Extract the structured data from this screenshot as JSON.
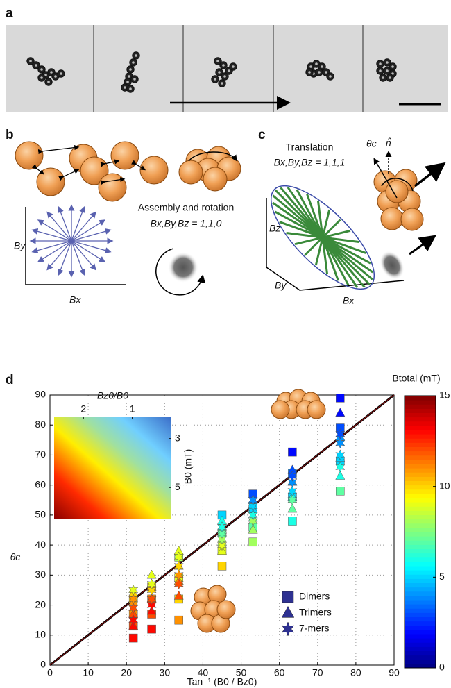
{
  "panels": {
    "a": {
      "label": "a"
    },
    "b": {
      "label": "b",
      "x_axis": "Bx",
      "y_axis": "By",
      "caption": "Assembly and rotation",
      "setting": "Bx,By,Bz = 1,1,0"
    },
    "c": {
      "label": "c",
      "caption": "Translation",
      "setting": "Bx,By,Bz = 1,1,1",
      "x_axis": "Bx",
      "y_axis": "By",
      "z_axis": "Bz",
      "angle": "θc",
      "normal": "n̂"
    },
    "d": {
      "label": "d"
    }
  },
  "chart_data": {
    "type": "scatter",
    "xlabel": "Tan⁻¹ (B0 / Bz0)",
    "ylabel": "θc",
    "xlim": [
      0,
      90
    ],
    "xticks": [
      0,
      10,
      20,
      30,
      40,
      50,
      60,
      70,
      80,
      90
    ],
    "ylim": [
      0,
      90
    ],
    "yticks": [
      0,
      10,
      20,
      30,
      40,
      50,
      60,
      70,
      80,
      90
    ],
    "grid": true,
    "legend": "lower right",
    "colorbar_label": "Btotal (mT)",
    "colormap": "jet",
    "clim": [
      0,
      15
    ],
    "cticks": [
      0,
      5,
      10,
      15
    ],
    "series": [
      {
        "name": "Dimers",
        "marker": "square",
        "color": "#2e3192",
        "x": [
          21.8,
          21.8,
          21.8,
          21.8,
          26.6,
          26.6,
          26.6,
          26.6,
          33.7,
          33.7,
          33.7,
          33.7,
          45,
          45,
          45,
          45,
          53.1,
          53.1,
          53.1,
          53.1,
          63.4,
          63.4,
          63.4,
          63.4,
          75.9,
          75.9,
          75.9,
          75.9
        ],
        "y": [
          9,
          13,
          17,
          22,
          12,
          17,
          22,
          26,
          15,
          22,
          29,
          36,
          33,
          38,
          44,
          50,
          41,
          46,
          52,
          57,
          48,
          56,
          64,
          71,
          58,
          68,
          79,
          89
        ],
        "btotal": [
          13,
          12,
          11,
          10,
          13,
          12,
          11,
          10,
          11,
          10,
          9,
          8,
          10,
          9,
          7,
          5,
          8,
          7,
          5,
          3,
          6,
          5,
          4,
          2,
          7,
          5,
          3,
          2
        ]
      },
      {
        "name": "Trimers",
        "marker": "triangle",
        "color": "#2e3192",
        "x": [
          21.8,
          21.8,
          21.8,
          21.8,
          26.6,
          26.6,
          26.6,
          26.6,
          33.7,
          33.7,
          33.7,
          33.7,
          45,
          45,
          45,
          45,
          53.1,
          53.1,
          53.1,
          53.1,
          63.4,
          63.4,
          63.4,
          63.4,
          75.9,
          75.9,
          75.9,
          75.9
        ],
        "y": [
          13,
          17,
          21,
          24,
          18,
          22,
          26,
          30,
          23,
          28,
          33,
          38,
          38,
          41,
          45,
          48,
          45,
          49,
          52,
          55,
          52,
          56,
          61,
          65,
          63,
          69,
          76,
          84
        ],
        "btotal": [
          13,
          12,
          11,
          10,
          13,
          12,
          11,
          9,
          12,
          11,
          10,
          9,
          9,
          8,
          7,
          6,
          8,
          7,
          5,
          3,
          7,
          6,
          4,
          3,
          6,
          5,
          4,
          2
        ]
      },
      {
        "name": "7-mers",
        "marker": "star",
        "color": "#2e3192",
        "x": [
          21.8,
          21.8,
          21.8,
          21.8,
          26.6,
          26.6,
          26.6,
          26.6,
          33.7,
          33.7,
          33.7,
          33.7,
          45,
          45,
          45,
          45,
          53.1,
          53.1,
          53.1,
          53.1,
          63.4,
          63.4,
          63.4,
          63.4,
          75.9,
          75.9,
          75.9,
          75.9
        ],
        "y": [
          15,
          19,
          22,
          25,
          20,
          22,
          25,
          27,
          27,
          30,
          33,
          36,
          40,
          42,
          44,
          46,
          48,
          50,
          53,
          55,
          55,
          58,
          61,
          63,
          66,
          70,
          74,
          77
        ],
        "btotal": [
          13,
          12,
          11,
          9,
          13,
          12,
          10,
          9,
          12,
          11,
          10,
          9,
          9,
          8,
          7,
          6,
          8,
          6,
          5,
          4,
          7,
          5,
          4,
          3,
          6,
          5,
          4,
          3
        ]
      }
    ],
    "inset": {
      "xlabel": "Bz0/B0",
      "ylabel": "B0 (mT)",
      "xlim": [
        2.6,
        0.2
      ],
      "xticks": [
        2,
        1
      ],
      "ylim": [
        2.1,
        6.3
      ],
      "yticks": [
        3,
        5
      ]
    }
  }
}
